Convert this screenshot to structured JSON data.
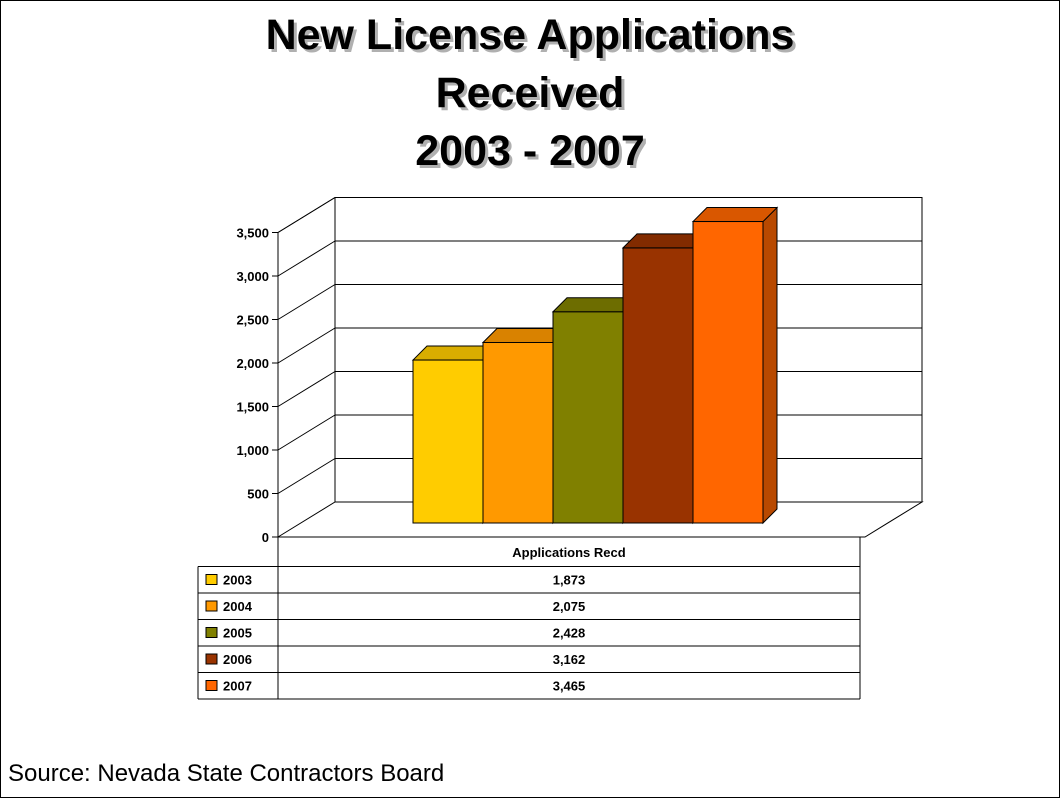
{
  "title_lines": [
    "New License Applications",
    "Received",
    "2003 - 2007"
  ],
  "source": "Source: Nevada State Contractors Board",
  "colors": {
    "2003": "#ffcc00",
    "2004": "#ff9900",
    "2005": "#808000",
    "2006": "#993300",
    "2007": "#ff6600"
  },
  "chart_data": {
    "type": "bar",
    "title": "New License Applications Received 2003 - 2007",
    "xlabel": "",
    "ylabel": "",
    "ylim": [
      0,
      3500
    ],
    "y_ticks": [
      "0",
      "500",
      "1,000",
      "1,500",
      "2,000",
      "2,500",
      "3,000",
      "3,500"
    ],
    "grid": true,
    "three_d": true,
    "table_header": "Applications Recd",
    "categories": [
      "Applications Recd"
    ],
    "series": [
      {
        "name": "2003",
        "values": [
          1873
        ],
        "label": "1,873"
      },
      {
        "name": "2004",
        "values": [
          2075
        ],
        "label": "2,075"
      },
      {
        "name": "2005",
        "values": [
          2428
        ],
        "label": "2,428"
      },
      {
        "name": "2006",
        "values": [
          3162
        ],
        "label": "3,162"
      },
      {
        "name": "2007",
        "values": [
          3465
        ],
        "label": "3,465"
      }
    ]
  }
}
